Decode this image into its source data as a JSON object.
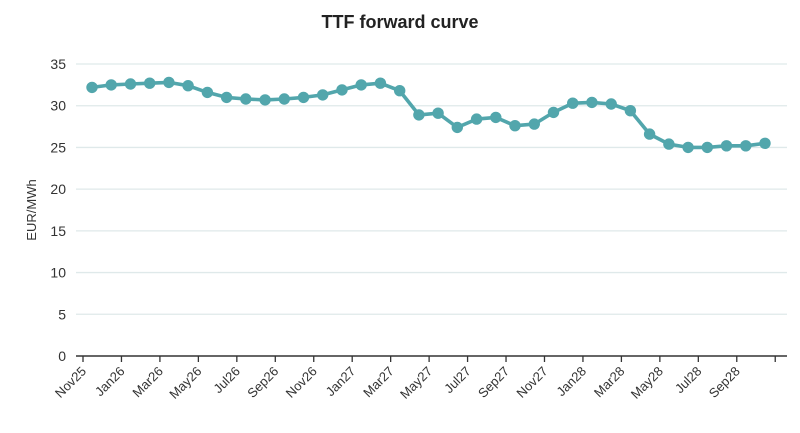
{
  "chart_data": {
    "type": "line",
    "title": "TTF forward curve",
    "ylabel": "EUR/MWh",
    "xlabel": "",
    "ylim": [
      0,
      35
    ],
    "yticks": [
      0,
      5,
      10,
      15,
      20,
      25,
      30,
      35
    ],
    "grid": true,
    "legend_position": "none",
    "x_tick_labels": [
      "Nov25",
      "Jan26",
      "Mar26",
      "May26",
      "Jul26",
      "Sep26",
      "Nov26",
      "Jan27",
      "Mar27",
      "May27",
      "Jul27",
      "Sep27",
      "Nov27",
      "Jan28",
      "Mar28",
      "May28",
      "Jul28",
      "Sep28"
    ],
    "categories": [
      "Nov25",
      "Dec25",
      "Jan26",
      "Feb26",
      "Mar26",
      "Apr26",
      "May26",
      "Jun26",
      "Jul26",
      "Aug26",
      "Sep26",
      "Oct26",
      "Nov26",
      "Dec26",
      "Jan27",
      "Feb27",
      "Mar27",
      "Apr27",
      "May27",
      "Jun27",
      "Jul27",
      "Aug27",
      "Sep27",
      "Oct27",
      "Nov27",
      "Dec27",
      "Jan28",
      "Feb28",
      "Mar28",
      "Apr28",
      "May28",
      "Jun28",
      "Jul28",
      "Aug28",
      "Sep28",
      "Oct28"
    ],
    "series": [
      {
        "name": "TTF forward curve",
        "unit": "EUR/MWh",
        "values": [
          32.2,
          32.5,
          32.6,
          32.7,
          32.8,
          32.4,
          31.6,
          31.0,
          30.8,
          30.7,
          30.8,
          31.0,
          31.3,
          31.9,
          32.5,
          32.7,
          31.8,
          28.9,
          29.1,
          27.4,
          28.4,
          28.6,
          27.6,
          27.8,
          29.2,
          30.3,
          30.4,
          30.2,
          29.4,
          26.6,
          25.4,
          25.0,
          25.0,
          25.2,
          25.2,
          25.5
        ]
      }
    ],
    "colors": {
      "line": "#52a6ac",
      "marker": "#52a6ac",
      "grid": "#dfe9ea",
      "axis": "#333333",
      "text": "#333333",
      "title": "#222222"
    },
    "marker_style": "circle"
  }
}
